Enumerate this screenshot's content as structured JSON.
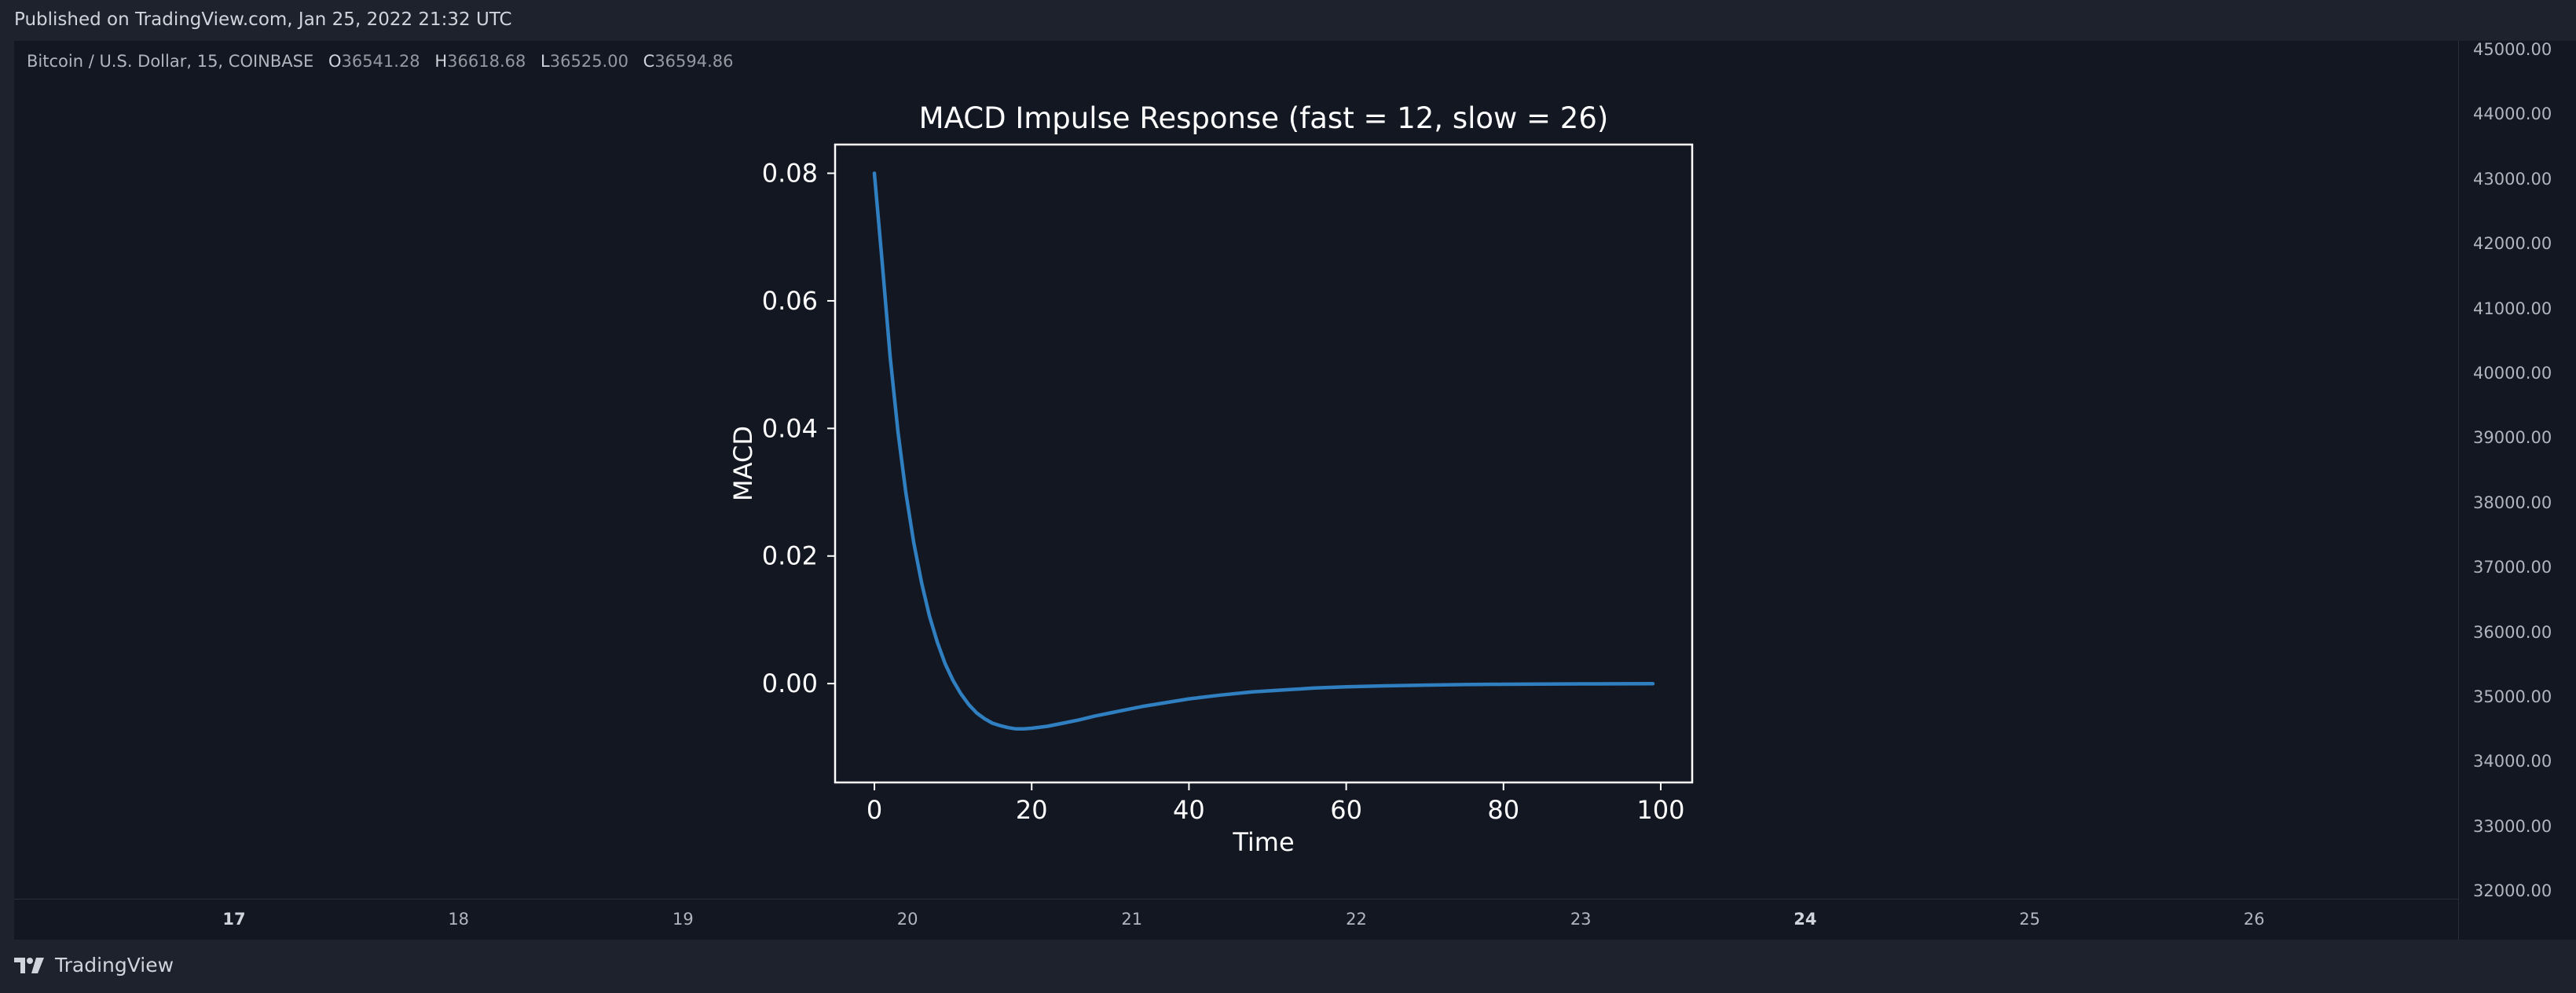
{
  "header": {
    "published": "Published on TradingView.com, Jan 25, 2022 21:32 UTC"
  },
  "symbol_legend": {
    "name": "Bitcoin / U.S. Dollar, 15, COINBASE",
    "o_label": "O",
    "o_value": "36541.28",
    "h_label": "H",
    "h_value": "36618.68",
    "l_label": "L",
    "l_value": "36525.00",
    "c_label": "C",
    "c_value": "36594.86"
  },
  "price_axis": [
    "45000.00",
    "44000.00",
    "43000.00",
    "42000.00",
    "41000.00",
    "40000.00",
    "39000.00",
    "38000.00",
    "37000.00",
    "36000.00",
    "35000.00",
    "34000.00",
    "33000.00",
    "32000.00"
  ],
  "date_axis": [
    {
      "label": "17",
      "bold": true
    },
    {
      "label": "18",
      "bold": false
    },
    {
      "label": "19",
      "bold": false
    },
    {
      "label": "20",
      "bold": false
    },
    {
      "label": "21",
      "bold": false
    },
    {
      "label": "22",
      "bold": false
    },
    {
      "label": "23",
      "bold": false
    },
    {
      "label": "24",
      "bold": true
    },
    {
      "label": "25",
      "bold": false
    },
    {
      "label": "26",
      "bold": false
    }
  ],
  "footer": {
    "brand": "TradingView"
  },
  "colors": {
    "background": "#131722",
    "line": "#2f7fc1",
    "text": "#ffffff"
  },
  "chart_data": {
    "type": "line",
    "title": "MACD Impulse Response (fast = 12, slow = 26)",
    "xlabel": "Time",
    "ylabel": "MACD",
    "xlim": [
      -5,
      104
    ],
    "ylim": [
      -0.0155,
      0.0845
    ],
    "xticks": [
      0,
      20,
      40,
      60,
      80,
      100
    ],
    "yticks": [
      0.0,
      0.02,
      0.04,
      0.06,
      0.08
    ],
    "ytick_labels": [
      "0.00",
      "0.02",
      "0.04",
      "0.06",
      "0.08"
    ],
    "grid": false,
    "series": [
      {
        "x": [
          0,
          1,
          2,
          3,
          4,
          5,
          6,
          7,
          8,
          9,
          10,
          11,
          12,
          13,
          14,
          15,
          16,
          17,
          18,
          19,
          20,
          22,
          24,
          26,
          28,
          30,
          32,
          34,
          36,
          38,
          40,
          44,
          48,
          52,
          56,
          60,
          65,
          70,
          75,
          80,
          85,
          90,
          95,
          99
        ],
        "values": [
          0.08,
          0.0658,
          0.0512,
          0.0394,
          0.0299,
          0.0221,
          0.0158,
          0.0106,
          0.0065,
          0.0031,
          0.0005,
          -0.0016,
          -0.0033,
          -0.0046,
          -0.0055,
          -0.0062,
          -0.0066,
          -0.0069,
          -0.0071,
          -0.0071,
          -0.007,
          -0.0067,
          -0.0062,
          -0.0057,
          -0.0051,
          -0.0046,
          -0.0041,
          -0.0036,
          -0.0032,
          -0.0028,
          -0.0024,
          -0.0018,
          -0.0013,
          -0.001,
          -0.0007,
          -0.0005,
          -0.00035,
          -0.00024,
          -0.00016,
          -0.00011,
          -7e-05,
          -5e-05,
          -3e-05,
          -2e-05
        ]
      }
    ]
  }
}
